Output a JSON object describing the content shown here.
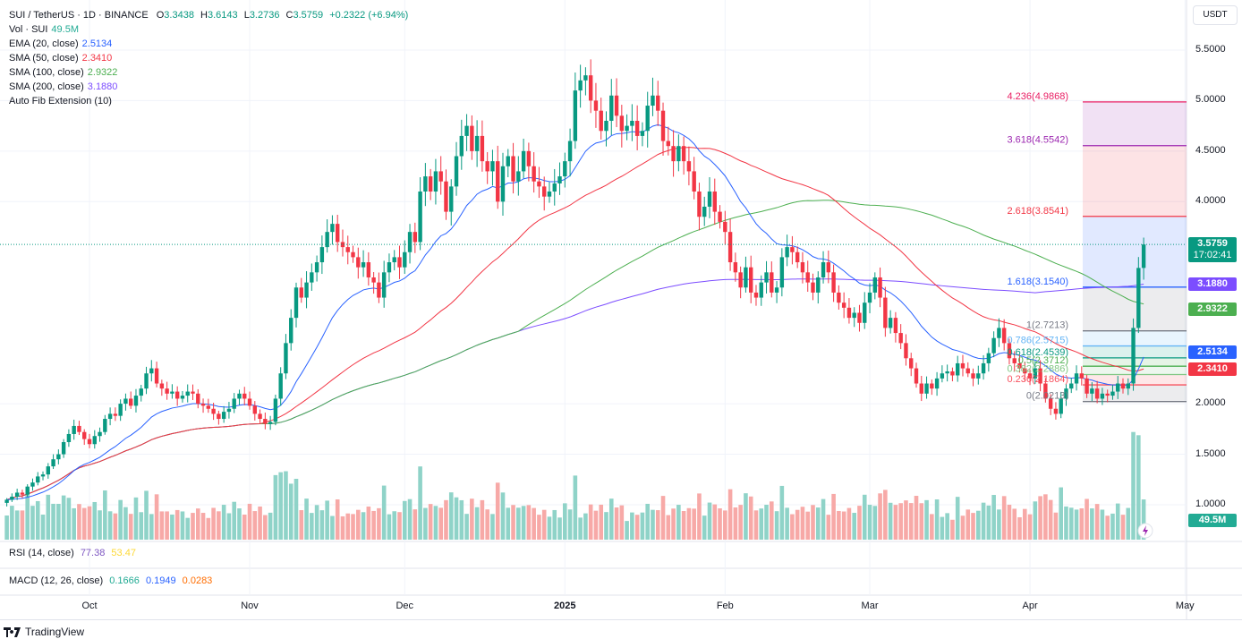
{
  "header": {
    "symbol": "SUI / TetherUS · 1D · BINANCE",
    "open_label": "O",
    "open": "3.3438",
    "high_label": "H",
    "high": "3.6143",
    "low_label": "L",
    "low": "3.2736",
    "close_label": "C",
    "close": "3.5759",
    "change": "+0.2322 (+6.94%)"
  },
  "indicators": [
    {
      "label": "Vol · SUI",
      "value": "49.5M",
      "color": "#22ab94"
    },
    {
      "label": "EMA (20, close)",
      "value": "2.5134",
      "color": "#2962ff"
    },
    {
      "label": "SMA (50, close)",
      "value": "2.3410",
      "color": "#f23645"
    },
    {
      "label": "SMA (100, close)",
      "value": "2.9322",
      "color": "#4caf50"
    },
    {
      "label": "SMA (200, close)",
      "value": "3.1880",
      "color": "#7c4dff"
    },
    {
      "label": "Auto Fib Extension (10)",
      "value": null,
      "color": "#131722"
    }
  ],
  "rsi": {
    "label": "RSI (14, close)",
    "v1": "77.38",
    "v2": "53.47"
  },
  "macd": {
    "label": "MACD (12, 26, close)",
    "v1": "0.1666",
    "v2": "0.1949",
    "v3": "0.0283"
  },
  "currency_button": "USDT",
  "price_badges": {
    "last": "3.5759",
    "countdown": "17:02:41",
    "sma200": "3.1880",
    "sma100": "2.9322",
    "ema20": "2.5134",
    "sma50": "2.3410",
    "volume": "49.5M"
  },
  "branding": "TradingView",
  "colors": {
    "up": "#089981",
    "down": "#f23645",
    "vol_up": "#8fd3c8",
    "vol_down": "#f7a9a7"
  },
  "chart_data": {
    "type": "candlestick",
    "start_date": "2024-09-15",
    "interval": "1D",
    "y_ticks": [
      "5.5000",
      "5.0000",
      "4.5000",
      "4.0000",
      "2.0000",
      "1.5000",
      "1.0000"
    ],
    "y_tick_values": [
      5.5,
      5.0,
      4.5,
      4.0,
      2.0,
      1.5,
      1.0
    ],
    "x_ticks": [
      {
        "label": "Oct",
        "day": 16
      },
      {
        "label": "Nov",
        "day": 47
      },
      {
        "label": "Dec",
        "day": 77
      },
      {
        "label": "2025",
        "day": 108
      },
      {
        "label": "Feb",
        "day": 139
      },
      {
        "label": "Mar",
        "day": 167
      },
      {
        "label": "Apr",
        "day": 198
      },
      {
        "label": "May",
        "day": 228
      }
    ],
    "closes": [
      1.05,
      1.08,
      1.12,
      1.1,
      1.18,
      1.22,
      1.28,
      1.3,
      1.38,
      1.45,
      1.5,
      1.62,
      1.7,
      1.78,
      1.72,
      1.65,
      1.6,
      1.68,
      1.72,
      1.85,
      1.9,
      1.88,
      2.0,
      2.05,
      1.98,
      2.08,
      2.15,
      2.3,
      2.35,
      2.2,
      2.15,
      2.1,
      2.12,
      2.05,
      2.08,
      2.12,
      2.1,
      2.0,
      1.98,
      1.95,
      1.9,
      1.85,
      1.92,
      1.95,
      2.05,
      2.1,
      2.05,
      1.98,
      1.9,
      1.85,
      1.8,
      1.82,
      2.05,
      2.3,
      2.6,
      2.85,
      3.15,
      3.05,
      3.2,
      3.3,
      3.4,
      3.55,
      3.7,
      3.78,
      3.6,
      3.55,
      3.5,
      3.45,
      3.35,
      3.4,
      3.25,
      3.2,
      3.05,
      3.3,
      3.4,
      3.45,
      3.35,
      3.5,
      3.7,
      3.6,
      4.1,
      4.25,
      4.1,
      4.3,
      4.2,
      3.9,
      4.15,
      4.45,
      4.65,
      4.75,
      4.5,
      4.65,
      4.4,
      4.3,
      4.4,
      4.0,
      4.35,
      4.45,
      4.2,
      4.3,
      4.5,
      4.35,
      4.2,
      4.15,
      4.05,
      4.1,
      4.18,
      4.25,
      4.4,
      4.6,
      5.1,
      5.2,
      5.25,
      5.0,
      4.9,
      4.7,
      4.8,
      5.05,
      4.85,
      4.7,
      4.75,
      4.8,
      4.65,
      4.7,
      4.95,
      5.05,
      4.9,
      4.6,
      4.55,
      4.4,
      4.55,
      4.4,
      4.3,
      4.1,
      3.85,
      3.95,
      4.1,
      3.9,
      3.8,
      3.7,
      3.4,
      3.3,
      3.15,
      3.35,
      3.1,
      3.05,
      3.2,
      3.3,
      3.1,
      3.15,
      3.45,
      3.55,
      3.5,
      3.4,
      3.3,
      3.2,
      3.1,
      3.25,
      3.4,
      3.3,
      3.1,
      3.0,
      2.95,
      2.85,
      2.9,
      2.8,
      3.0,
      3.1,
      3.25,
      3.05,
      2.75,
      2.85,
      2.7,
      2.6,
      2.45,
      2.35,
      2.2,
      2.1,
      2.2,
      2.15,
      2.25,
      2.3,
      2.32,
      2.28,
      2.4,
      2.35,
      2.3,
      2.25,
      2.3,
      2.4,
      2.5,
      2.65,
      2.75,
      2.6,
      2.45,
      2.4,
      2.35,
      2.3,
      2.25,
      2.35,
      2.2,
      2.05,
      1.95,
      1.9,
      2.05,
      2.15,
      2.2,
      2.3,
      2.25,
      2.1,
      2.15,
      2.05,
      2.1,
      2.08,
      2.12,
      2.2,
      2.15,
      2.2,
      2.75,
      3.3438,
      3.5759
    ],
    "last_price": 3.5759,
    "fib_levels": [
      {
        "label": "4.236(4.9868)",
        "price": 4.9868,
        "color": "#e91e63"
      },
      {
        "label": "3.618(4.5542)",
        "price": 4.5542,
        "color": "#9c27b0"
      },
      {
        "label": "2.618(3.8541)",
        "price": 3.8541,
        "color": "#f23645"
      },
      {
        "label": "1.618(3.1540)",
        "price": 3.154,
        "color": "#2962ff"
      },
      {
        "label": "1(2.7213)",
        "price": 2.7213,
        "color": "#787b86"
      },
      {
        "label": "0.786(2.5715)",
        "price": 2.5715,
        "color": "#64b5f6"
      },
      {
        "label": "0.618(2.4539)",
        "price": 2.4539,
        "color": "#089981"
      },
      {
        "label": "0.5(2.3712)",
        "price": 2.3712,
        "color": "#4caf50"
      },
      {
        "label": "0.382(2.2886)",
        "price": 2.2886,
        "color": "#81c784"
      },
      {
        "label": "0.236(2.1864)",
        "price": 2.1864,
        "color": "#f7525f"
      },
      {
        "label": "0(2.0213)",
        "price": 2.0213,
        "color": "#787b86"
      }
    ]
  }
}
